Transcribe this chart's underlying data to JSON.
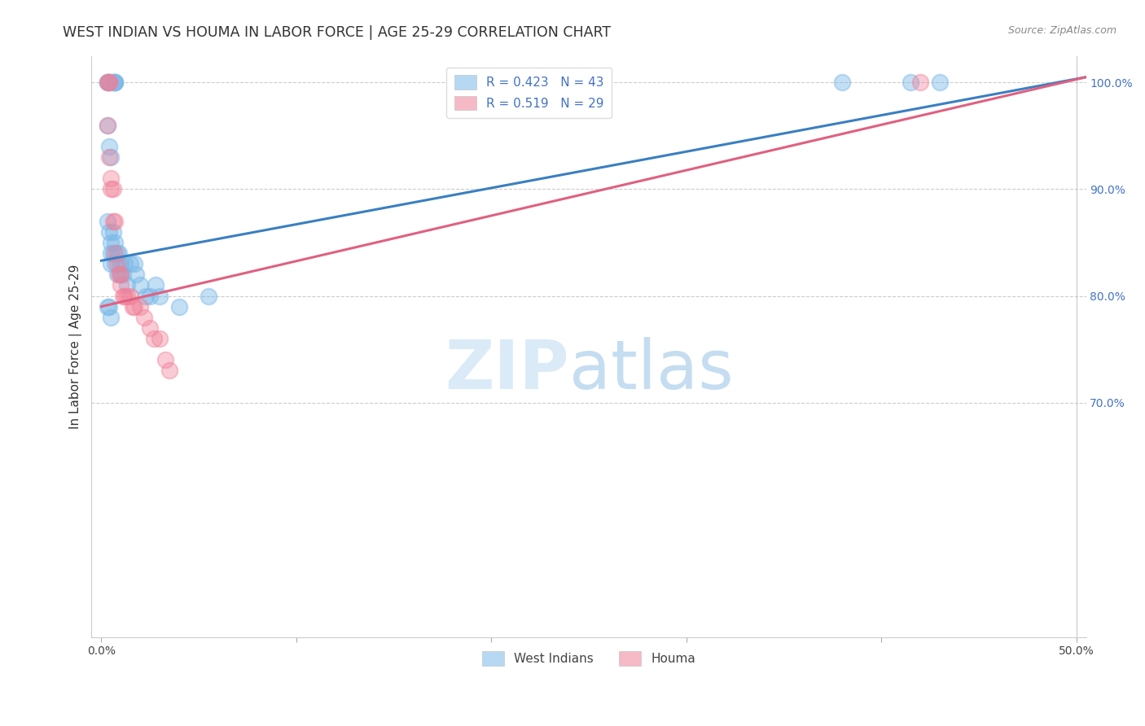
{
  "title": "WEST INDIAN VS HOUMA IN LABOR FORCE | AGE 25-29 CORRELATION CHART",
  "source": "Source: ZipAtlas.com",
  "ylabel": "In Labor Force | Age 25-29",
  "xlim": [
    -0.005,
    0.505
  ],
  "ylim": [
    0.48,
    1.025
  ],
  "background_color": "#ffffff",
  "west_indian_color": "#7ab8e8",
  "houma_color": "#f08098",
  "west_indian_R": 0.423,
  "west_indian_N": 43,
  "houma_R": 0.519,
  "houma_N": 29,
  "watermark_zip": "ZIP",
  "watermark_atlas": "atlas",
  "tick_fontsize": 10,
  "legend_fontsize": 11,
  "west_indian_x": [
    0.003,
    0.003,
    0.004,
    0.006,
    0.007,
    0.007,
    0.007,
    0.003,
    0.004,
    0.005,
    0.003,
    0.004,
    0.005,
    0.005,
    0.005,
    0.006,
    0.006,
    0.007,
    0.007,
    0.008,
    0.008,
    0.009,
    0.01,
    0.01,
    0.011,
    0.012,
    0.013,
    0.015,
    0.017,
    0.018,
    0.02,
    0.023,
    0.025,
    0.028,
    0.03,
    0.04,
    0.055,
    0.003,
    0.004,
    0.005,
    0.38,
    0.415,
    0.43
  ],
  "west_indian_y": [
    1.0,
    1.0,
    1.0,
    1.0,
    1.0,
    1.0,
    1.0,
    0.96,
    0.94,
    0.93,
    0.87,
    0.86,
    0.85,
    0.84,
    0.83,
    0.86,
    0.84,
    0.83,
    0.85,
    0.84,
    0.82,
    0.84,
    0.83,
    0.82,
    0.82,
    0.83,
    0.81,
    0.83,
    0.83,
    0.82,
    0.81,
    0.8,
    0.8,
    0.81,
    0.8,
    0.79,
    0.8,
    0.79,
    0.79,
    0.78,
    1.0,
    1.0,
    1.0
  ],
  "houma_x": [
    0.003,
    0.004,
    0.004,
    0.003,
    0.004,
    0.005,
    0.005,
    0.006,
    0.006,
    0.007,
    0.007,
    0.008,
    0.009,
    0.01,
    0.01,
    0.011,
    0.012,
    0.013,
    0.015,
    0.016,
    0.017,
    0.02,
    0.022,
    0.025,
    0.027,
    0.03,
    0.033,
    0.035,
    0.42
  ],
  "houma_y": [
    1.0,
    1.0,
    1.0,
    0.96,
    0.93,
    0.91,
    0.9,
    0.9,
    0.87,
    0.87,
    0.84,
    0.83,
    0.82,
    0.82,
    0.81,
    0.8,
    0.8,
    0.8,
    0.8,
    0.79,
    0.79,
    0.79,
    0.78,
    0.77,
    0.76,
    0.76,
    0.74,
    0.73,
    1.0
  ],
  "wi_trend_x": [
    0.0,
    0.505
  ],
  "wi_trend_y": [
    0.833,
    1.005
  ],
  "h_trend_x": [
    0.0,
    0.505
  ],
  "h_trend_y": [
    0.79,
    1.005
  ]
}
